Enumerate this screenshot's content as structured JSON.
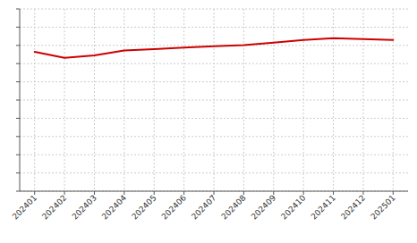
{
  "chart_data": {
    "type": "line",
    "categories": [
      "202401",
      "202402",
      "202403",
      "202404",
      "202405",
      "202406",
      "202407",
      "202408",
      "202409",
      "202410",
      "202411",
      "202412",
      "202501"
    ],
    "values": [
      76.5,
      73.2,
      74.5,
      77.2,
      78.0,
      78.8,
      79.5,
      80.2,
      81.5,
      83.0,
      84.0,
      83.5,
      83.0
    ],
    "color": "#cc0000",
    "ylim": [
      0,
      100
    ],
    "yticks": [
      0,
      10,
      20,
      30,
      40,
      50,
      60,
      70,
      80,
      90,
      100
    ],
    "grid": true,
    "tick_labels": "x"
  }
}
